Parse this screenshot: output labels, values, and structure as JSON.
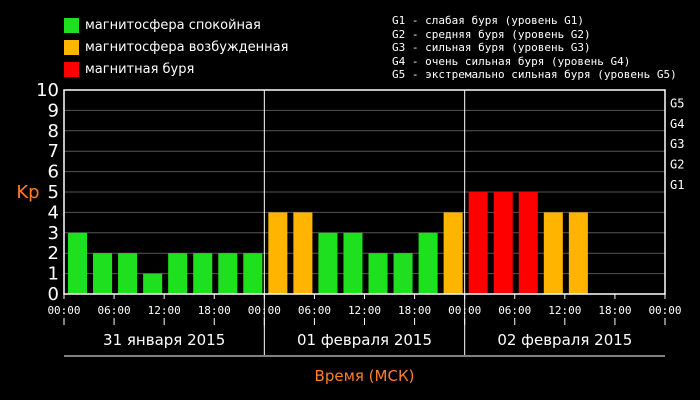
{
  "legend": [
    {
      "label": "магнитосфера спокойная",
      "color": "#1fe01f"
    },
    {
      "label": "магнитосфера возбужденная",
      "color": "#ffb400"
    },
    {
      "label": "магнитная буря",
      "color": "#ff0000"
    }
  ],
  "storm_levels": [
    "G1 - слабая буря (уровень G1)",
    "G2 - средняя буря (уровень G2)",
    "G3 - сильная буря (уровень G3)",
    "G4 - очень сильная буря (уровень G4)",
    "G5 - экстремально сильная буря (уровень G5)"
  ],
  "colors": {
    "quiet": "#1fe01f",
    "active": "#ffb400",
    "storm": "#ff0000",
    "axis_label": "#ff7f27",
    "frame": "#ffffff",
    "grid": "#555555"
  },
  "chart_data": {
    "type": "bar",
    "ylabel": "Kp",
    "xlabel": "Время (МСК)",
    "ylim": [
      0,
      10
    ],
    "y_ticks": [
      "0",
      "1",
      "2",
      "3",
      "4",
      "5",
      "6",
      "7",
      "8",
      "9",
      "10"
    ],
    "g_levels": [
      {
        "label": "G1",
        "kp": 5
      },
      {
        "label": "G2",
        "kp": 6
      },
      {
        "label": "G3",
        "kp": 7
      },
      {
        "label": "G4",
        "kp": 8
      },
      {
        "label": "G5",
        "kp": 9
      }
    ],
    "x_ticks": [
      "00:00",
      "06:00",
      "12:00",
      "18:00",
      "00:00",
      "06:00",
      "12:00",
      "18:00",
      "00:00",
      "06:00",
      "12:00",
      "18:00",
      "00:00"
    ],
    "days": [
      "31 января 2015",
      "01 февраля 2015",
      "02 февраля 2015"
    ],
    "bars_per_day": 8,
    "values": [
      3,
      2,
      2,
      1,
      2,
      2,
      2,
      2,
      4,
      4,
      3,
      3,
      2,
      2,
      3,
      4,
      5,
      5,
      5,
      4,
      4
    ],
    "levels": [
      "quiet",
      "quiet",
      "quiet",
      "quiet",
      "quiet",
      "quiet",
      "quiet",
      "quiet",
      "active",
      "active",
      "quiet",
      "quiet",
      "quiet",
      "quiet",
      "quiet",
      "active",
      "storm",
      "storm",
      "storm",
      "active",
      "active"
    ]
  }
}
